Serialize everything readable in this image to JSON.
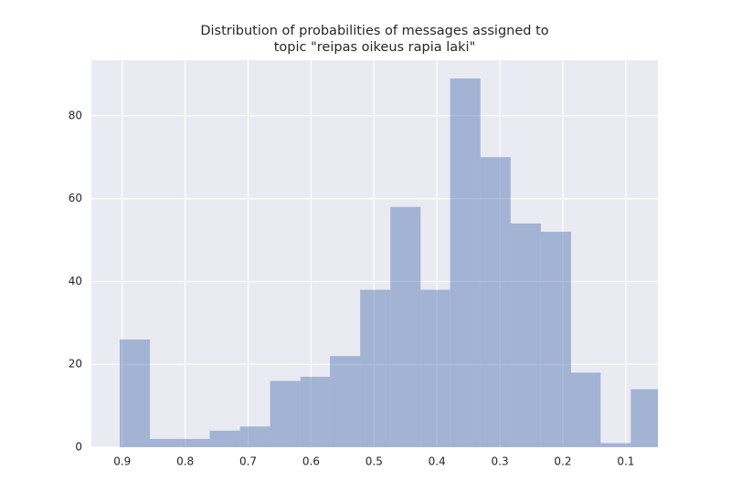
{
  "chart_data": {
    "type": "histogram",
    "title": [
      "Distribution of probabilities of messages assigned to",
      "topic \"reipas oikeus rapia laki\""
    ],
    "bins": [
      0.904,
      0.856,
      0.808,
      0.761,
      0.713,
      0.665,
      0.617,
      0.57,
      0.522,
      0.474,
      0.426,
      0.379,
      0.331,
      0.283,
      0.235,
      0.187,
      0.14,
      0.092,
      0.044
    ],
    "values": [
      26,
      2,
      2,
      4,
      5,
      16,
      17,
      22,
      38,
      58,
      38,
      89,
      70,
      54,
      52,
      18,
      1,
      14
    ],
    "color": "#4c72b0",
    "xlim": [
      0.949,
      0.049
    ],
    "xticks": [
      0.9,
      0.8,
      0.7,
      0.6,
      0.5,
      0.4,
      0.3,
      0.2,
      0.1
    ],
    "ylim": [
      0,
      93.4
    ],
    "yticks": [
      0,
      20,
      40,
      60,
      80
    ],
    "grid": true
  }
}
